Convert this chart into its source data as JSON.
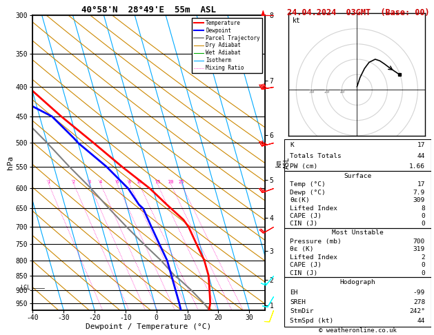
{
  "title_left": "40°58'N  28°49'E  55m  ASL",
  "title_right": "24.04.2024  03GMT  (Base: 00)",
  "xlabel": "Dewpoint / Temperature (°C)",
  "ylabel_left": "hPa",
  "pressure_ticks": [
    300,
    350,
    400,
    450,
    500,
    550,
    600,
    650,
    700,
    750,
    800,
    850,
    900,
    950
  ],
  "xlim": [
    -40,
    35
  ],
  "xticks": [
    -40,
    -30,
    -20,
    -10,
    0,
    10,
    20,
    30
  ],
  "pmin": 300,
  "pmax": 975,
  "skew_factor": 27,
  "lcl_pressure": 860,
  "temp_profile_p": [
    300,
    350,
    400,
    450,
    500,
    550,
    600,
    640,
    680,
    700,
    750,
    800,
    850,
    900,
    950,
    975
  ],
  "temp_profile_T": [
    -41,
    -30,
    -21,
    -13,
    -5,
    2,
    9,
    13,
    17,
    18,
    19,
    20,
    20,
    19,
    18,
    17
  ],
  "dewp_profile_p": [
    300,
    350,
    400,
    430,
    450,
    490,
    500,
    550,
    600,
    640,
    650,
    700,
    750,
    800,
    850,
    900,
    950,
    975
  ],
  "dewp_profile_T": [
    -55,
    -47,
    -36,
    -22,
    -16,
    -11,
    -10,
    -3,
    2,
    4,
    5,
    6,
    7,
    8,
    8,
    8,
    8,
    7.9
  ],
  "parcel_profile_p": [
    975,
    950,
    900,
    860,
    850,
    800,
    750,
    700,
    650,
    600,
    550,
    500,
    450,
    400,
    350,
    300
  ],
  "parcel_profile_T": [
    17,
    16,
    13,
    10,
    9,
    6,
    2,
    -2,
    -6,
    -10,
    -15,
    -20,
    -26,
    -33,
    -41,
    -50
  ],
  "km_p": [
    951,
    820,
    694,
    574,
    462,
    357,
    261,
    179
  ],
  "km_lab": [
    1,
    2,
    3,
    4,
    5,
    6,
    7,
    8
  ],
  "mixing_ratio_vals": [
    1,
    2,
    3,
    4,
    6,
    8,
    10,
    15,
    20,
    25
  ],
  "colors": {
    "temperature": "#ff0000",
    "dewpoint": "#0000ff",
    "parcel": "#808080",
    "dry_adiabat": "#cc8800",
    "wet_adiabat": "#00aa00",
    "isotherm": "#00aaff",
    "mixing_ratio": "#ff00bb"
  },
  "hodo_u": [
    0,
    2,
    5,
    8,
    12,
    15,
    18,
    22,
    25,
    28
  ],
  "hodo_v": [
    2,
    8,
    14,
    18,
    20,
    19,
    17,
    14,
    12,
    10
  ],
  "wind_p": [
    300,
    400,
    500,
    600,
    700,
    850,
    925,
    975
  ],
  "wind_spd": [
    50,
    40,
    35,
    25,
    20,
    15,
    10,
    10
  ],
  "wind_dir": [
    270,
    260,
    255,
    250,
    240,
    220,
    210,
    200
  ],
  "wind_col": [
    "red",
    "red",
    "red",
    "red",
    "red",
    "cyan",
    "cyan",
    "yellow"
  ],
  "K_index": 17,
  "totals_totals": 44,
  "PW_cm": "1.66",
  "sfc_temp": 17,
  "sfc_dewp": "7.9",
  "sfc_theta_e": 309,
  "sfc_li": 8,
  "sfc_cape": 0,
  "sfc_cin": 0,
  "mu_pres": 700,
  "mu_theta_e": 319,
  "mu_li": 2,
  "mu_cape": 0,
  "mu_cin": 0,
  "EH": -99,
  "SREH": 278,
  "StmDir": "242°",
  "StmSpd_kt": 44
}
